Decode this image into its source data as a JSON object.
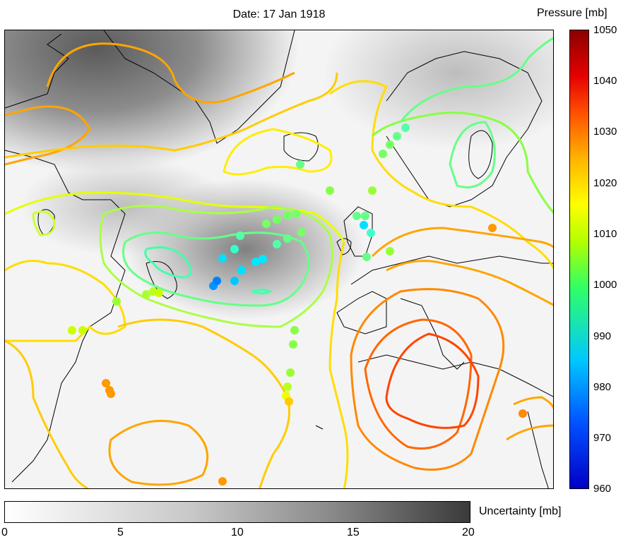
{
  "title": "Date: 17 Jan 1918",
  "pressure_colorbar": {
    "label": "Pressure [mb]",
    "ticks": [
      "1050",
      "1040",
      "1030",
      "1020",
      "1010",
      "1000",
      "990",
      "980",
      "970",
      "960"
    ]
  },
  "uncertainty_colorbar": {
    "label": "Uncertainty [mb]",
    "ticks": [
      "0",
      "5",
      "10",
      "15",
      "20"
    ]
  }
}
